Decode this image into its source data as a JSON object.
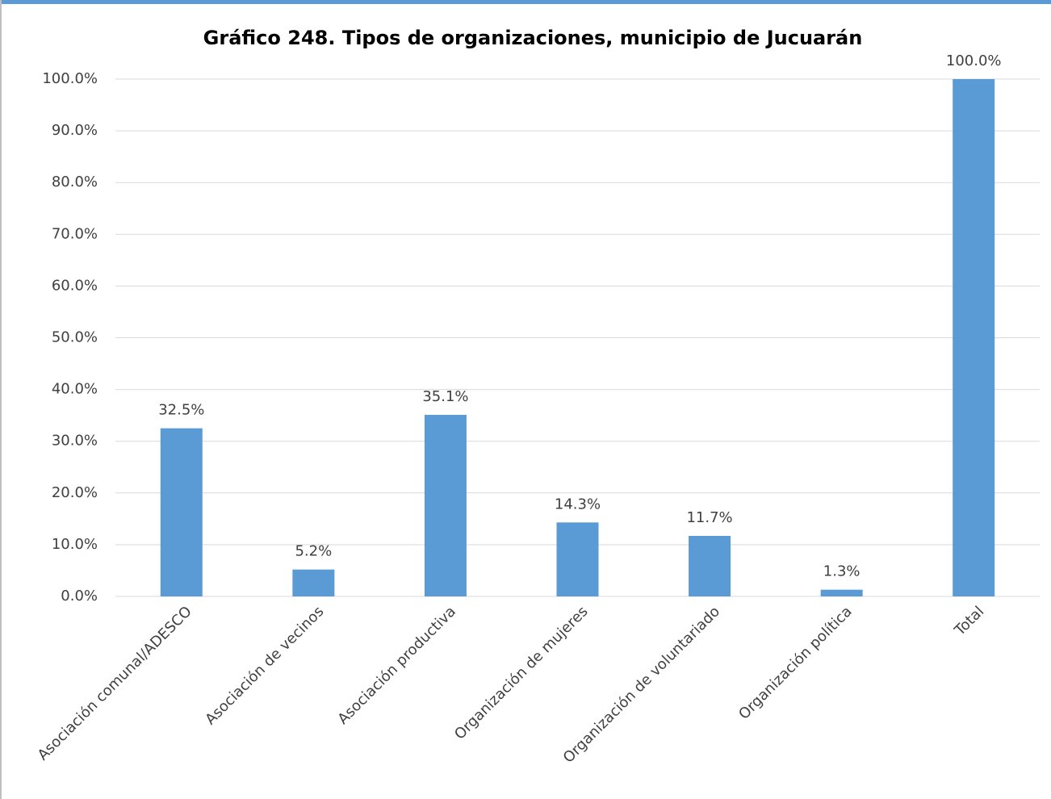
{
  "chart_data": {
    "type": "bar",
    "title": "Gráfico 248. Tipos de organizaciones, municipio de Jucuarán",
    "categories": [
      "Asociación comunal/ADESCO",
      "Asociación de vecinos",
      "Asociación productiva",
      "Organización de mujeres",
      "Organización de voluntariado",
      "Organización política",
      "Total"
    ],
    "values": [
      32.5,
      5.2,
      35.1,
      14.3,
      11.7,
      1.3,
      100.0
    ],
    "value_labels": [
      "32.5%",
      "5.2%",
      "35.1%",
      "14.3%",
      "11.7%",
      "1.3%",
      "100.0%"
    ],
    "color": "#5b9bd5",
    "ylim": [
      0,
      100
    ],
    "yticks": [
      {
        "value": 0,
        "label": "0.0%"
      },
      {
        "value": 10,
        "label": "10.0%"
      },
      {
        "value": 20,
        "label": "20.0%"
      },
      {
        "value": 30,
        "label": "30.0%"
      },
      {
        "value": 40,
        "label": "40.0%"
      },
      {
        "value": 50,
        "label": "50.0%"
      },
      {
        "value": 60,
        "label": "60.0%"
      },
      {
        "value": 70,
        "label": "70.0%"
      },
      {
        "value": 80,
        "label": "80.0%"
      },
      {
        "value": 90,
        "label": "90.0%"
      },
      {
        "value": 100,
        "label": "100.0%"
      }
    ],
    "grid": true
  }
}
